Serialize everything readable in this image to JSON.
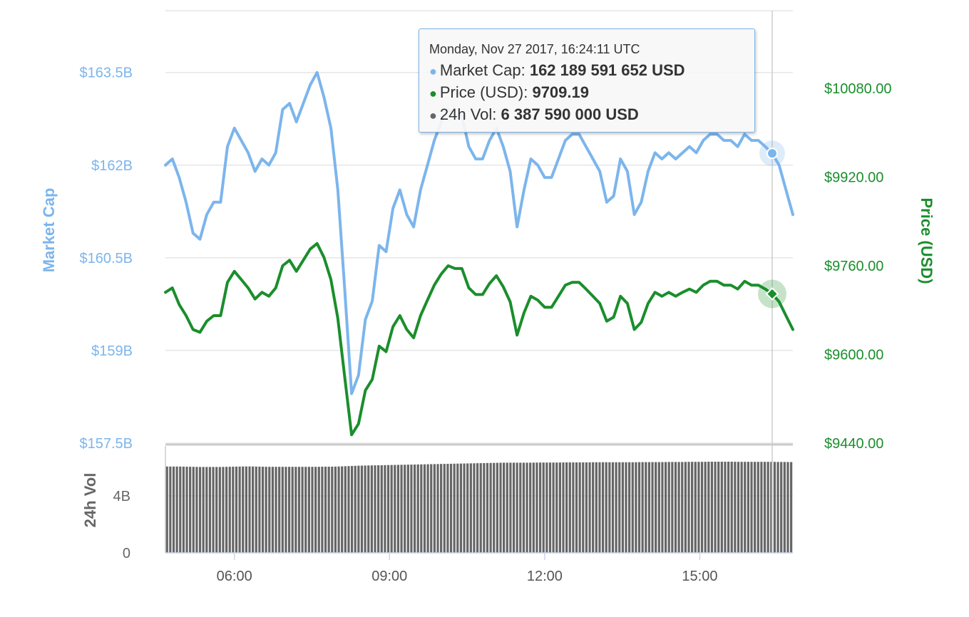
{
  "tooltip": {
    "header": "Monday, Nov 27 2017, 16:24:11 UTC",
    "rows": [
      {
        "label": "Market Cap",
        "value": "162 189 591 652 USD",
        "color": "#7cb5ec"
      },
      {
        "label": "Price (USD)",
        "value": "9709.19",
        "color": "#1a8e2c"
      },
      {
        "label": "24h Vol",
        "value": "6 387 590 000 USD",
        "color": "#666666"
      }
    ]
  },
  "chart_data": {
    "type": "line",
    "title": "",
    "x_range": [
      "04:40",
      "16:48"
    ],
    "x_ticks": [
      "06:00",
      "09:00",
      "12:00",
      "15:00"
    ],
    "y_left": {
      "label": "Market Cap",
      "range": [
        157.5,
        164.5
      ],
      "ticks": [
        "$157.5B",
        "$159B",
        "$160.5B",
        "$162B",
        "$163.5B"
      ],
      "tick_values": [
        157.5,
        159,
        160.5,
        162,
        163.5
      ],
      "color": "#7cb5ec"
    },
    "y_right": {
      "label": "Price (USD)",
      "range": [
        9440,
        10220
      ],
      "ticks": [
        "$9440.00",
        "$9600.00",
        "$9760.00",
        "$9920.00",
        "$10080.00"
      ],
      "tick_values": [
        9440,
        9600,
        9760,
        9920,
        10080
      ],
      "color": "#1a8e2c"
    },
    "y_volume": {
      "label": "24h Vol",
      "range": [
        0,
        7.5
      ],
      "ticks": [
        "0",
        "4B"
      ],
      "tick_values": [
        0,
        4
      ],
      "color": "#666666"
    },
    "grid": true,
    "crosshair_time": "16:24",
    "series": [
      {
        "name": "Market Cap",
        "unit": "B USD",
        "x": [
          "04:40",
          "04:48",
          "04:56",
          "05:04",
          "05:12",
          "05:20",
          "05:28",
          "05:36",
          "05:44",
          "05:52",
          "06:00",
          "06:08",
          "06:16",
          "06:24",
          "06:32",
          "06:40",
          "06:48",
          "06:56",
          "07:04",
          "07:12",
          "07:20",
          "07:28",
          "07:36",
          "07:44",
          "07:52",
          "08:00",
          "08:08",
          "08:16",
          "08:24",
          "08:32",
          "08:40",
          "08:48",
          "08:56",
          "09:04",
          "09:12",
          "09:20",
          "09:28",
          "09:36",
          "09:44",
          "09:52",
          "10:00",
          "10:08",
          "10:16",
          "10:24",
          "10:32",
          "10:40",
          "10:48",
          "10:56",
          "11:04",
          "11:12",
          "11:20",
          "11:28",
          "11:36",
          "11:44",
          "11:52",
          "12:00",
          "12:08",
          "12:16",
          "12:24",
          "12:32",
          "12:40",
          "12:48",
          "12:56",
          "13:04",
          "13:12",
          "13:20",
          "13:28",
          "13:36",
          "13:44",
          "13:52",
          "14:00",
          "14:08",
          "14:16",
          "14:24",
          "14:32",
          "14:40",
          "14:48",
          "14:56",
          "15:04",
          "15:12",
          "15:20",
          "15:28",
          "15:36",
          "15:44",
          "15:52",
          "16:00",
          "16:08",
          "16:16",
          "16:24",
          "16:32",
          "16:40",
          "16:48"
        ],
        "values": [
          162.0,
          162.1,
          161.8,
          161.4,
          160.9,
          160.8,
          161.2,
          161.4,
          161.4,
          162.3,
          162.6,
          162.4,
          162.2,
          161.9,
          162.1,
          162.0,
          162.2,
          162.9,
          163.0,
          162.7,
          163.0,
          163.3,
          163.5,
          163.1,
          162.6,
          161.6,
          160.0,
          158.3,
          158.6,
          159.5,
          159.8,
          160.7,
          160.6,
          161.3,
          161.6,
          161.2,
          161.0,
          161.6,
          162.0,
          162.4,
          162.7,
          162.9,
          162.8,
          162.8,
          162.3,
          162.1,
          162.1,
          162.4,
          162.6,
          162.3,
          161.9,
          161.0,
          161.6,
          162.1,
          162.0,
          161.8,
          161.8,
          162.1,
          162.4,
          162.5,
          162.5,
          162.3,
          162.1,
          161.9,
          161.4,
          161.5,
          162.1,
          161.9,
          161.2,
          161.4,
          161.9,
          162.2,
          162.1,
          162.2,
          162.1,
          162.2,
          162.3,
          162.2,
          162.4,
          162.5,
          162.5,
          162.4,
          162.4,
          162.3,
          162.5,
          162.4,
          162.4,
          162.3,
          162.19,
          162.0,
          161.6,
          161.2
        ]
      },
      {
        "name": "Price (USD)",
        "unit": "USD",
        "values": [
          9712,
          9720,
          9690,
          9670,
          9645,
          9640,
          9660,
          9670,
          9670,
          9730,
          9750,
          9735,
          9720,
          9700,
          9712,
          9705,
          9720,
          9760,
          9770,
          9750,
          9770,
          9790,
          9800,
          9775,
          9735,
          9665,
          9560,
          9455,
          9475,
          9535,
          9555,
          9615,
          9605,
          9650,
          9670,
          9645,
          9630,
          9670,
          9698,
          9725,
          9745,
          9760,
          9755,
          9755,
          9720,
          9708,
          9708,
          9728,
          9742,
          9722,
          9695,
          9635,
          9675,
          9705,
          9698,
          9685,
          9685,
          9705,
          9725,
          9730,
          9730,
          9718,
          9705,
          9692,
          9660,
          9667,
          9705,
          9692,
          9645,
          9658,
          9692,
          9712,
          9705,
          9712,
          9705,
          9712,
          9718,
          9712,
          9725,
          9732,
          9732,
          9725,
          9725,
          9718,
          9732,
          9725,
          9725,
          9718,
          9709.19,
          9695,
          9670,
          9645
        ]
      },
      {
        "name": "24h Vol",
        "unit": "B USD",
        "values": [
          6.06,
          6.06,
          6.06,
          6.05,
          6.04,
          6.03,
          6.03,
          6.03,
          6.03,
          6.04,
          6.05,
          6.06,
          6.07,
          6.06,
          6.05,
          6.04,
          6.04,
          6.04,
          6.04,
          6.04,
          6.04,
          6.04,
          6.04,
          6.05,
          6.05,
          6.06,
          6.08,
          6.1,
          6.12,
          6.13,
          6.14,
          6.15,
          6.16,
          6.17,
          6.18,
          6.19,
          6.2,
          6.21,
          6.22,
          6.23,
          6.24,
          6.25,
          6.26,
          6.27,
          6.28,
          6.29,
          6.3,
          6.31,
          6.32,
          6.33,
          6.33,
          6.33,
          6.33,
          6.33,
          6.34,
          6.34,
          6.34,
          6.34,
          6.35,
          6.35,
          6.35,
          6.35,
          6.36,
          6.36,
          6.36,
          6.36,
          6.36,
          6.36,
          6.36,
          6.37,
          6.37,
          6.37,
          6.37,
          6.38,
          6.38,
          6.38,
          6.39,
          6.39,
          6.39,
          6.4,
          6.4,
          6.4,
          6.4,
          6.39,
          6.39,
          6.39,
          6.39,
          6.39,
          6.39,
          6.38,
          6.38,
          6.37
        ]
      }
    ]
  }
}
